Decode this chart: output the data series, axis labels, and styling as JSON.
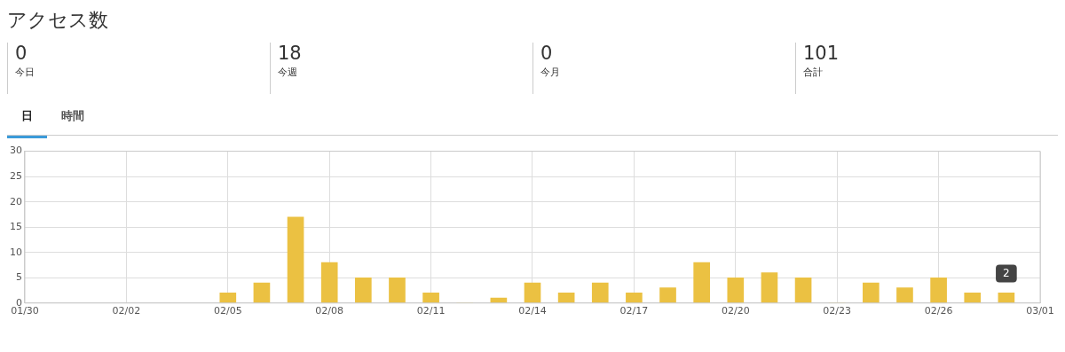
{
  "chart_data": [
    {
      "type": "other",
      "title": "アクセス数",
      "annotations": [
        "0",
        "今日",
        "18",
        "今週",
        "0",
        "今月",
        "101",
        "合計",
        "日",
        "時間"
      ]
    },
    {
      "type": "bar",
      "x": [
        "--02-05",
        "--02-06",
        "--02-07",
        "--02-08",
        "--02-09",
        "--02-10",
        "--02-11",
        "--02-12",
        "--02-13",
        "--02-14",
        "--02-15",
        "--02-16",
        "--02-17",
        "--02-18",
        "--02-19",
        "--02-20",
        "--02-21",
        "--02-22",
        "--02-23",
        "--02-24",
        "--02-25",
        "--02-26",
        "--02-27",
        "--02-28"
      ],
      "values": [
        2,
        4,
        17,
        8,
        5,
        5,
        2,
        0,
        1,
        4,
        2,
        4,
        2,
        3,
        8,
        5,
        6,
        5,
        0,
        4,
        3,
        5,
        2,
        2
      ],
      "color": "#ebc142",
      "xlim": [
        "--01-30",
        "--03-01"
      ],
      "xticks": [
        {
          "value": "--01-30",
          "label": "01/30"
        },
        {
          "value": "--02-02",
          "label": "02/02"
        },
        {
          "value": "--02-05",
          "label": "02/05"
        },
        {
          "value": "--02-08",
          "label": "02/08"
        },
        {
          "value": "--02-11",
          "label": "02/11"
        },
        {
          "value": "--02-14",
          "label": "02/14"
        },
        {
          "value": "--02-17",
          "label": "02/17"
        },
        {
          "value": "--02-20",
          "label": "02/20"
        },
        {
          "value": "--02-23",
          "label": "02/23"
        },
        {
          "value": "--02-26",
          "label": "02/26"
        },
        {
          "value": "--03-01",
          "label": "03/01"
        }
      ],
      "ylim": [
        0,
        30
      ],
      "yticks": [
        0,
        5,
        10,
        15,
        20,
        25,
        30
      ],
      "grid": true,
      "annotations": [
        {
          "text": "2",
          "x": "--02-28",
          "y": 2
        }
      ]
    }
  ]
}
